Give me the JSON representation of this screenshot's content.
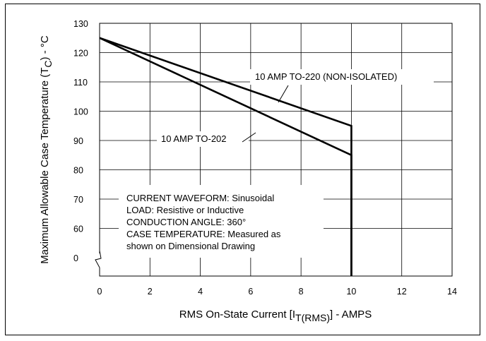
{
  "chart_data": {
    "type": "line",
    "xlabel": {
      "main": "RMS On-State Current [I",
      "sub": "T(RMS)",
      "tail": "] - AMPS"
    },
    "ylabel": {
      "main": "Maximum Allowable Case Temperature (T",
      "sub": "C",
      "tail": ") - °C"
    },
    "x_ticks": [
      0,
      2,
      4,
      6,
      8,
      10,
      12,
      14
    ],
    "y_ticks": [
      "0",
      "60",
      "70",
      "80",
      "90",
      "100",
      "110",
      "120",
      "130"
    ],
    "y_axis_break": true,
    "xlim": [
      0,
      14
    ],
    "ylim": [
      50,
      130
    ],
    "grid": true,
    "series": [
      {
        "name": "10 AMP TO-220 (NON-ISOLATED)",
        "points": [
          [
            0,
            125
          ],
          [
            10,
            95
          ],
          [
            10,
            0
          ]
        ]
      },
      {
        "name": "10 AMP TO-202",
        "points": [
          [
            0,
            125
          ],
          [
            10,
            85
          ],
          [
            10,
            0
          ]
        ]
      }
    ],
    "annotations": [
      "CURRENT WAVEFORM: Sinusoidal",
      "LOAD: Resistive or Inductive",
      "CONDUCTION ANGLE: 360°",
      "CASE TEMPERATURE: Measured as",
      "shown on Dimensional Drawing"
    ]
  }
}
